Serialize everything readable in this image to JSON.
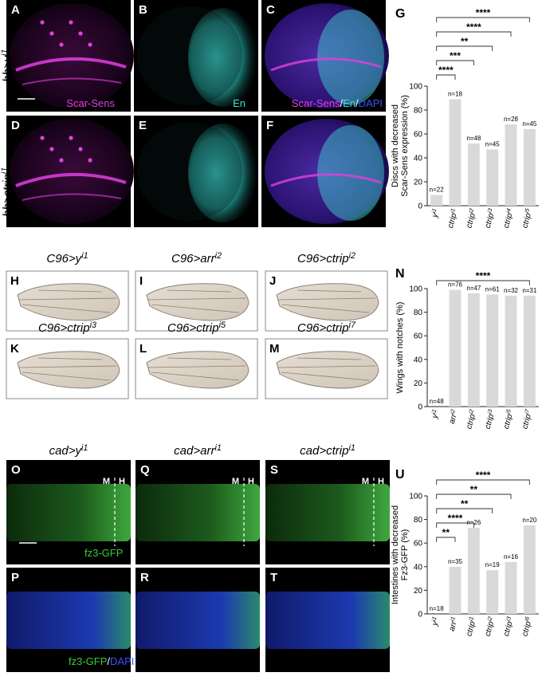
{
  "figure": {
    "row_labels": [
      {
        "main": "hh>y",
        "sup": "i1"
      },
      {
        "main": "hh>ctrip",
        "sup": "i1"
      }
    ],
    "panels_top": [
      {
        "letter": "A",
        "label": "Scar-Sens"
      },
      {
        "letter": "B",
        "label": "En"
      },
      {
        "letter": "C",
        "label_parts": [
          "Scar-Sens",
          "/",
          "En",
          "/",
          "DAPI"
        ]
      },
      {
        "letter": "D",
        "label": ""
      },
      {
        "letter": "E",
        "label": ""
      },
      {
        "letter": "F",
        "label": ""
      }
    ],
    "wing_titles": [
      {
        "main": "C96>y",
        "sup": "i1"
      },
      {
        "main": "C96>arr",
        "sup": "i2"
      },
      {
        "main": "C96>ctrip",
        "sup": "i2"
      },
      {
        "main": "C96>ctrip",
        "sup": "i3"
      },
      {
        "main": "C96>ctrip",
        "sup": "i5"
      },
      {
        "main": "C96>ctrip",
        "sup": "i7"
      }
    ],
    "wing_letters": [
      "H",
      "I",
      "J",
      "K",
      "L",
      "M"
    ],
    "gut_titles": [
      {
        "main": "cad>y",
        "sup": "i1"
      },
      {
        "main": "cad>arr",
        "sup": "i1"
      },
      {
        "main": "cad>ctrip",
        "sup": "i1"
      }
    ],
    "gut_letters": [
      "O",
      "Q",
      "S",
      "P",
      "R",
      "T"
    ],
    "gut_labels": {
      "fz3": "fz3-GFP",
      "fz3_dapi_a": "fz3-GFP",
      "fz3_dapi_sep": "/",
      "fz3_dapi_b": "DAPI",
      "M": "M",
      "H": "H"
    },
    "colors": {
      "magenta": "#e040e0",
      "cyan": "#40e0d8",
      "green": "#3ec83e",
      "blue": "#3a50ff",
      "bar": "#d9d9d9"
    }
  },
  "chart_data": [
    {
      "id": "G",
      "letter": "G",
      "type": "bar",
      "ylabel_lines": [
        "Discs with decreased",
        "Scar-Sens expression (%)"
      ],
      "ylim": [
        0,
        100
      ],
      "yticks": [
        0,
        20,
        40,
        60,
        80,
        100
      ],
      "categories": [
        {
          "main": "y",
          "sup": "i1"
        },
        {
          "main": "ctrip",
          "sup": "i1"
        },
        {
          "main": "ctrip",
          "sup": "i2"
        },
        {
          "main": "ctrip",
          "sup": "i3"
        },
        {
          "main": "ctrip",
          "sup": "i4"
        },
        {
          "main": "ctrip",
          "sup": "i5"
        }
      ],
      "values": [
        9,
        89,
        52,
        47,
        68,
        64
      ],
      "n_labels": [
        "n=22",
        "n=18",
        "n=48",
        "n=45",
        "n=28",
        "n=45"
      ],
      "brackets": [
        {
          "to": 1,
          "label": "****"
        },
        {
          "to": 2,
          "label": "***"
        },
        {
          "to": 3,
          "label": "**"
        },
        {
          "to": 4,
          "label": "****"
        },
        {
          "to": 5,
          "label": "****"
        }
      ]
    },
    {
      "id": "N",
      "letter": "N",
      "type": "bar",
      "ylabel_lines": [
        "Wings with notches (%)"
      ],
      "ylim": [
        0,
        100
      ],
      "yticks": [
        0,
        20,
        40,
        60,
        80,
        100
      ],
      "categories": [
        {
          "main": "y",
          "sup": "i1"
        },
        {
          "main": "arr",
          "sup": "i2"
        },
        {
          "main": "ctrip",
          "sup": "i2"
        },
        {
          "main": "ctrip",
          "sup": "i3"
        },
        {
          "main": "ctrip",
          "sup": "i5"
        },
        {
          "main": "ctrip",
          "sup": "i7"
        }
      ],
      "values": [
        0,
        99,
        96,
        95,
        94,
        94
      ],
      "n_labels": [
        "n=48",
        "n=76",
        "n=47",
        "n=61",
        "n=32",
        "n=31"
      ],
      "brackets": [
        {
          "to": 5,
          "label": "****"
        }
      ]
    },
    {
      "id": "U",
      "letter": "U",
      "type": "bar",
      "ylabel_lines": [
        "Intestines with decreased",
        "Fz3-GFP (%)"
      ],
      "ylim": [
        0,
        100
      ],
      "yticks": [
        0,
        20,
        40,
        60,
        80,
        100
      ],
      "categories": [
        {
          "main": "y",
          "sup": "i1"
        },
        {
          "main": "arr",
          "sup": "i1"
        },
        {
          "main": "ctrip",
          "sup": "i1"
        },
        {
          "main": "ctrip",
          "sup": "i2"
        },
        {
          "main": "ctrip",
          "sup": "i3"
        },
        {
          "main": "ctrip",
          "sup": "i6"
        }
      ],
      "values": [
        0,
        40,
        73,
        37,
        44,
        75
      ],
      "n_labels": [
        "n=18",
        "n=35",
        "n=26",
        "n=19",
        "n=16",
        "n=20"
      ],
      "brackets": [
        {
          "to": 1,
          "label": "**"
        },
        {
          "to": 2,
          "label": "****"
        },
        {
          "to": 3,
          "label": "**"
        },
        {
          "to": 4,
          "label": "**"
        },
        {
          "to": 5,
          "label": "****"
        }
      ]
    }
  ]
}
